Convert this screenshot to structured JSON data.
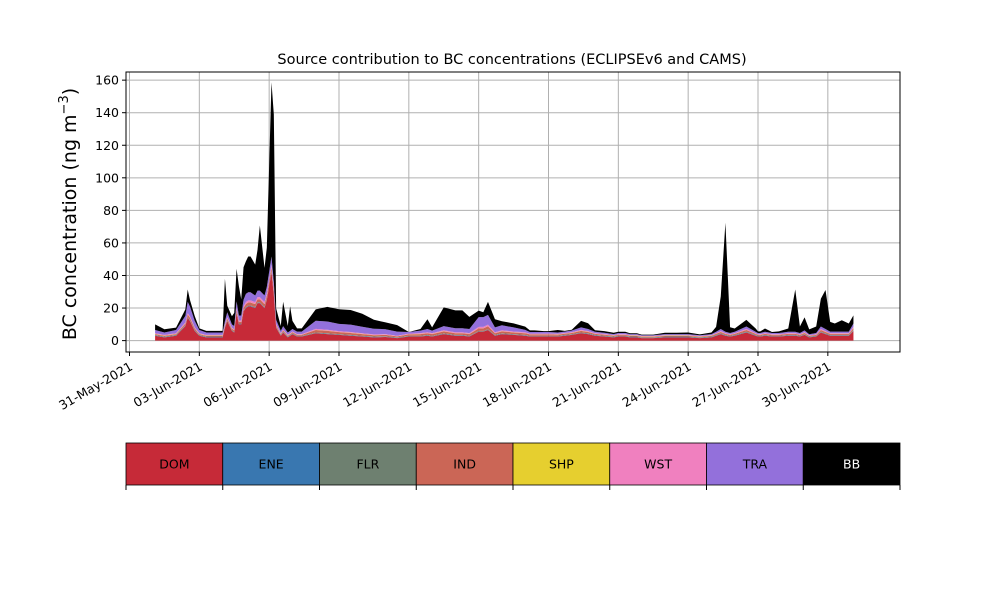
{
  "chart_data": {
    "type": "area",
    "stacked": true,
    "title": "Source contribution to BC concentrations (ECLIPSEv6 and CAMS)",
    "ylabel_main": "BC concentration (ng m",
    "ylabel_exp": "−3",
    "ylabel_close": ")",
    "ylim": [
      -7,
      165
    ],
    "yticks": [
      0,
      20,
      40,
      60,
      80,
      100,
      120,
      140,
      160
    ],
    "xlim": [
      -0.15,
      33.1
    ],
    "xticks": [
      {
        "pos": 0,
        "label": "31-May-2021"
      },
      {
        "pos": 3,
        "label": "03-Jun-2021"
      },
      {
        "pos": 6,
        "label": "06-Jun-2021"
      },
      {
        "pos": 9,
        "label": "09-Jun-2021"
      },
      {
        "pos": 12,
        "label": "12-Jun-2021"
      },
      {
        "pos": 15,
        "label": "15-Jun-2021"
      },
      {
        "pos": 18,
        "label": "18-Jun-2021"
      },
      {
        "pos": 21,
        "label": "21-Jun-2021"
      },
      {
        "pos": 24,
        "label": "24-Jun-2021"
      },
      {
        "pos": 27,
        "label": "27-Jun-2021"
      },
      {
        "pos": 30,
        "label": "30-Jun-2021"
      }
    ],
    "grid": true,
    "legend": [
      {
        "name": "DOM",
        "color": "#c62a38"
      },
      {
        "name": "ENE",
        "color": "#3977b0"
      },
      {
        "name": "FLR",
        "color": "#6e8070"
      },
      {
        "name": "IND",
        "color": "#cb6656"
      },
      {
        "name": "SHP",
        "color": "#e6cf2f"
      },
      {
        "name": "WST",
        "color": "#f080bf"
      },
      {
        "name": "TRA",
        "color": "#9370db"
      },
      {
        "name": "BB",
        "color": "#000000"
      }
    ],
    "legend_placement": "below-chart",
    "x": [
      1.1,
      1.5,
      2.0,
      2.4,
      2.5,
      2.6,
      2.8,
      3.0,
      3.3,
      3.5,
      3.8,
      4.0,
      4.1,
      4.2,
      4.4,
      4.5,
      4.6,
      4.7,
      4.8,
      4.9,
      5.0,
      5.1,
      5.2,
      5.4,
      5.5,
      5.6,
      5.8,
      5.9,
      6.1,
      6.2,
      6.3,
      6.5,
      6.6,
      6.8,
      6.9,
      7.0,
      7.2,
      7.4,
      8.0,
      8.5,
      9.0,
      9.5,
      10.0,
      10.5,
      11.0,
      11.5,
      12.0,
      12.5,
      12.8,
      13.0,
      13.5,
      14.0,
      14.3,
      14.6,
      15.0,
      15.2,
      15.4,
      15.7,
      16.0,
      16.5,
      17.0,
      17.2,
      17.4,
      17.8,
      18.0,
      18.4,
      18.7,
      19.0,
      19.4,
      19.7,
      20.0,
      20.4,
      20.8,
      21.0,
      21.3,
      21.5,
      21.8,
      22.0,
      22.5,
      23.0,
      23.5,
      24.0,
      24.5,
      25.0,
      25.2,
      25.4,
      25.6,
      25.8,
      26.0,
      26.5,
      26.9,
      27.0,
      27.1,
      27.3,
      27.6,
      27.9,
      28.3,
      28.6,
      28.8,
      29.0,
      29.2,
      29.5,
      29.7,
      29.9,
      30.1,
      30.3,
      30.6,
      30.9,
      31.1
    ],
    "series": [
      {
        "name": "DOM",
        "values": [
          3,
          2,
          3,
          9,
          14,
          12,
          6,
          3,
          2,
          2,
          2,
          2,
          8,
          12,
          6,
          5,
          17,
          10,
          10,
          18,
          20,
          21,
          21,
          20,
          23,
          23,
          20,
          25,
          42,
          28,
          8,
          3,
          5,
          2,
          3,
          4,
          2.5,
          2.5,
          4.5,
          4,
          3.5,
          3,
          2.5,
          2,
          2.2,
          1.5,
          2.5,
          2.5,
          3,
          2.5,
          4,
          3,
          3,
          2.5,
          5.5,
          5.5,
          6.5,
          3,
          4,
          3.5,
          3,
          2.5,
          2.5,
          2.5,
          2.5,
          2.5,
          3,
          3.5,
          4.5,
          4,
          3,
          2.5,
          2,
          2.5,
          2.5,
          2,
          2,
          1.5,
          1.5,
          2,
          2,
          2,
          1.5,
          2,
          3,
          4,
          3,
          2.5,
          3,
          5,
          3,
          2.5,
          2.5,
          3,
          2.5,
          2.5,
          3,
          3,
          2.5,
          3.5,
          2,
          2.5,
          5,
          4,
          3,
          3,
          3,
          3,
          6
        ]
      },
      {
        "name": "ENE",
        "values": [
          0.2,
          0.2,
          0.2,
          0.2,
          0.2,
          0.2,
          0.2,
          0.2,
          0.2,
          0.2,
          0.2,
          0.2,
          0.2,
          0.2,
          0.2,
          0.2,
          0.2,
          0.2,
          0.2,
          0.2,
          0.3,
          0.3,
          0.3,
          0.3,
          0.3,
          0.3,
          0.3,
          0.3,
          0.3,
          0.3,
          0.2,
          0.2,
          0.2,
          0.2,
          0.2,
          0.2,
          0.2,
          0.2,
          0.2,
          0.2,
          0.2,
          0.2,
          0.2,
          0.2,
          0.2,
          0.2,
          0.2,
          0.2,
          0.2,
          0.2,
          0.2,
          0.2,
          0.2,
          0.2,
          0.2,
          0.2,
          0.2,
          0.2,
          0.2,
          0.2,
          0.2,
          0.2,
          0.2,
          0.2,
          0.2,
          0.2,
          0.2,
          0.2,
          0.2,
          0.2,
          0.2,
          0.2,
          0.2,
          0.2,
          0.2,
          0.2,
          0.2,
          0.2,
          0.2,
          0.2,
          0.2,
          0.2,
          0.2,
          0.2,
          0.2,
          0.2,
          0.2,
          0.2,
          0.2,
          0.2,
          0.2,
          0.2,
          0.2,
          0.2,
          0.2,
          0.2,
          0.2,
          0.2,
          0.2,
          0.2,
          0.2,
          0.2,
          0.2,
          0.2,
          0.2,
          0.2,
          0.2,
          0.2,
          0.2
        ]
      },
      {
        "name": "FLR",
        "values": [
          0.3,
          0.3,
          0.3,
          0.3,
          0.3,
          0.3,
          0.3,
          0.3,
          0.3,
          0.3,
          0.3,
          0.3,
          0.3,
          0.3,
          0.3,
          0.3,
          0.3,
          0.3,
          0.3,
          0.3,
          0.3,
          0.3,
          0.3,
          0.3,
          0.3,
          0.3,
          0.3,
          0.3,
          0.3,
          0.3,
          0.3,
          0.3,
          0.3,
          0.3,
          0.3,
          0.3,
          0.3,
          0.3,
          0.3,
          0.3,
          0.3,
          0.3,
          0.3,
          0.3,
          0.3,
          0.3,
          0.3,
          0.3,
          0.3,
          0.3,
          0.3,
          0.3,
          0.3,
          0.3,
          0.3,
          0.3,
          0.3,
          0.3,
          0.3,
          0.3,
          0.3,
          0.3,
          0.3,
          0.3,
          0.3,
          0.3,
          0.3,
          0.3,
          0.3,
          0.3,
          0.3,
          0.3,
          0.3,
          0.3,
          0.3,
          0.3,
          0.3,
          0.3,
          0.3,
          0.3,
          0.3,
          0.3,
          0.3,
          0.3,
          0.3,
          0.3,
          0.3,
          0.3,
          0.3,
          0.3,
          0.3,
          0.3,
          0.3,
          0.3,
          0.3,
          0.3,
          0.3,
          0.3,
          0.3,
          0.3,
          0.3,
          0.3,
          0.3,
          0.3,
          0.3,
          0.3,
          0.3,
          0.3,
          0.3
        ]
      },
      {
        "name": "IND",
        "values": [
          0.5,
          0.5,
          0.5,
          1,
          1.5,
          1.5,
          1,
          0.5,
          0.5,
          0.5,
          0.5,
          0.5,
          0.8,
          1,
          0.8,
          0.8,
          1.5,
          1,
          1,
          1.5,
          1.8,
          1.8,
          1.8,
          1.8,
          1.8,
          1.8,
          1.8,
          2,
          2.5,
          2,
          1,
          0.5,
          0.8,
          0.5,
          0.5,
          0.6,
          0.5,
          0.5,
          1.5,
          1.5,
          1.2,
          1.2,
          1,
          0.8,
          0.8,
          0.6,
          0.8,
          1,
          1,
          1,
          1.2,
          1,
          1,
          1,
          1.5,
          1.5,
          1.8,
          1,
          1.2,
          1,
          1,
          0.8,
          0.8,
          0.8,
          0.8,
          0.7,
          0.7,
          0.7,
          1,
          0.8,
          0.6,
          0.6,
          0.5,
          0.5,
          0.5,
          0.5,
          0.5,
          0.4,
          0.4,
          0.5,
          0.5,
          0.5,
          0.4,
          0.5,
          0.6,
          0.8,
          0.6,
          0.5,
          0.6,
          1,
          0.6,
          0.5,
          0.5,
          0.6,
          0.5,
          0.5,
          0.6,
          0.6,
          0.5,
          0.7,
          0.4,
          0.5,
          1,
          0.8,
          0.6,
          0.6,
          0.6,
          0.6,
          1.2
        ]
      },
      {
        "name": "SHP",
        "values": [
          0.1,
          0.1,
          0.1,
          0.1,
          0.1,
          0.1,
          0.1,
          0.1,
          0.1,
          0.1,
          0.1,
          0.1,
          0.1,
          0.1,
          0.1,
          0.1,
          0.1,
          0.1,
          0.1,
          0.1,
          0.1,
          0.1,
          0.1,
          0.1,
          0.1,
          0.1,
          0.1,
          0.1,
          0.1,
          0.1,
          0.1,
          0.1,
          0.1,
          0.1,
          0.1,
          0.1,
          0.1,
          0.1,
          0.1,
          0.1,
          0.1,
          0.1,
          0.1,
          0.1,
          0.1,
          0.1,
          0.1,
          0.1,
          0.1,
          0.1,
          0.1,
          0.1,
          0.1,
          0.1,
          0.1,
          0.1,
          0.1,
          0.1,
          0.1,
          0.1,
          0.1,
          0.1,
          0.1,
          0.1,
          0.1,
          0.1,
          0.1,
          0.1,
          0.1,
          0.1,
          0.1,
          0.1,
          0.1,
          0.1,
          0.1,
          0.1,
          0.1,
          0.1,
          0.1,
          0.1,
          0.1,
          0.1,
          0.1,
          0.1,
          0.1,
          0.1,
          0.1,
          0.1,
          0.1,
          0.1,
          0.1,
          0.1,
          0.1,
          0.1,
          0.1,
          0.1,
          0.1,
          0.1,
          0.1,
          0.1,
          0.1,
          0.1,
          0.1,
          0.1,
          0.1,
          0.1,
          0.1,
          0.1,
          0.1
        ]
      },
      {
        "name": "WST",
        "values": [
          0.4,
          0.4,
          0.4,
          0.6,
          0.8,
          0.8,
          0.6,
          0.4,
          0.4,
          0.4,
          0.4,
          0.4,
          0.6,
          0.8,
          0.6,
          0.6,
          1,
          0.8,
          0.8,
          1,
          1.2,
          1.2,
          1.2,
          1.2,
          1.2,
          1.2,
          1.2,
          1.3,
          1.5,
          1.3,
          0.7,
          0.4,
          0.5,
          0.4,
          0.4,
          0.4,
          0.4,
          0.4,
          0.6,
          0.6,
          0.5,
          0.5,
          0.4,
          0.4,
          0.4,
          0.3,
          0.4,
          0.5,
          0.5,
          0.5,
          0.6,
          0.5,
          0.5,
          0.5,
          0.8,
          0.8,
          0.9,
          0.5,
          0.6,
          0.5,
          0.5,
          0.4,
          0.4,
          0.4,
          0.4,
          0.4,
          0.4,
          0.4,
          0.5,
          0.5,
          0.4,
          0.4,
          0.3,
          0.4,
          0.4,
          0.3,
          0.3,
          0.3,
          0.3,
          0.3,
          0.3,
          0.3,
          0.3,
          0.3,
          0.4,
          0.5,
          0.4,
          0.4,
          0.4,
          0.6,
          0.4,
          0.4,
          0.4,
          0.4,
          0.4,
          0.4,
          0.4,
          0.4,
          0.4,
          0.5,
          0.3,
          0.4,
          0.6,
          0.5,
          0.4,
          0.4,
          0.4,
          0.4,
          0.7
        ]
      },
      {
        "name": "TRA",
        "values": [
          2,
          1.5,
          2,
          4,
          7,
          6,
          4,
          2,
          1.5,
          1.5,
          1.5,
          1.5,
          2,
          3,
          2,
          2,
          4,
          3,
          3,
          4,
          5,
          5,
          5,
          4,
          4,
          4,
          4,
          4,
          5,
          4,
          2.5,
          1.5,
          2,
          1.5,
          1.5,
          1.5,
          1.5,
          1.5,
          5,
          5,
          4.5,
          4.5,
          4,
          3.5,
          3,
          2.5,
          1,
          1.5,
          2,
          1.5,
          2.5,
          2.5,
          2.5,
          2.5,
          6,
          6,
          6,
          3,
          3,
          2.5,
          1.5,
          1,
          1,
          1,
          1,
          0.8,
          0.8,
          1,
          1.5,
          1.2,
          0.8,
          0.7,
          0.6,
          0.7,
          0.7,
          0.6,
          0.6,
          0.5,
          0.5,
          0.6,
          0.6,
          0.6,
          0.5,
          0.6,
          0.8,
          1.2,
          0.8,
          0.7,
          0.8,
          1.5,
          0.8,
          0.7,
          0.7,
          0.8,
          0.7,
          0.7,
          0.8,
          0.8,
          0.7,
          1,
          0.6,
          0.7,
          1.5,
          1.2,
          0.9,
          0.9,
          0.9,
          0.9,
          2
        ]
      },
      {
        "name": "BB",
        "values": [
          3.5,
          2,
          1.5,
          4,
          7.5,
          4,
          3,
          1,
          1,
          1,
          1,
          1,
          26,
          4,
          5,
          8,
          20,
          18,
          10,
          20,
          20,
          22,
          22,
          19,
          25,
          40,
          17,
          24,
          107,
          103,
          7,
          3,
          15,
          4,
          15,
          5,
          2,
          2,
          7,
          9,
          9,
          9,
          8,
          5.5,
          4.2,
          4,
          0,
          1,
          6,
          2,
          11.5,
          11,
          11,
          7.5,
          4,
          3,
          8,
          5,
          2.5,
          2.5,
          2,
          1,
          1,
          0.5,
          0.5,
          1.5,
          0.5,
          0.5,
          4,
          3.6,
          1,
          1,
          0.8,
          0.7,
          0.7,
          0.5,
          0.5,
          0.4,
          0.4,
          0.8,
          0.8,
          1,
          0.5,
          1,
          3,
          20,
          67,
          3.5,
          2,
          4,
          2,
          1,
          1,
          2,
          0.6,
          1,
          2,
          26,
          4,
          8,
          3,
          4,
          17,
          24,
          6,
          5,
          7,
          5,
          5
        ]
      }
    ]
  }
}
